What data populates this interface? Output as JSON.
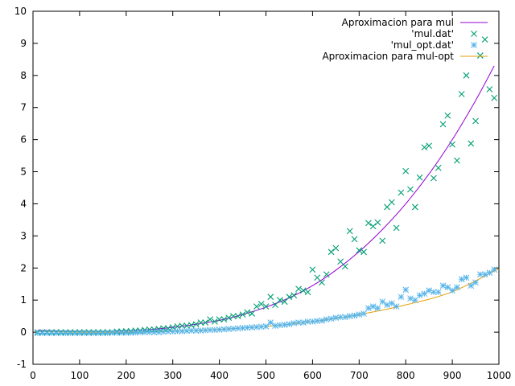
{
  "chart_data": {
    "type": "scatter",
    "title": "",
    "xlabel": "",
    "ylabel": "",
    "xlim": [
      0,
      1000
    ],
    "ylim": [
      -1,
      10
    ],
    "xticks": [
      0,
      100,
      200,
      300,
      400,
      500,
      600,
      700,
      800,
      900,
      1000
    ],
    "yticks": [
      -1,
      0,
      1,
      2,
      3,
      4,
      5,
      6,
      7,
      8,
      9,
      10
    ],
    "grid": false,
    "legend_position": "top-right",
    "legend": [
      {
        "label": "Aproximacion para mul",
        "kind": "line",
        "color": "#9400d3"
      },
      {
        "label": "'mul.dat'",
        "kind": "cross",
        "color": "#009e73"
      },
      {
        "label": "'mul_opt.dat'",
        "kind": "star",
        "color": "#56b4e9"
      },
      {
        "label": "Aproximacion para mul-opt",
        "kind": "line",
        "color": "#e69f00"
      }
    ],
    "lines": [
      {
        "name": "Aproximacion para mul",
        "color": "#9400d3",
        "x": [
          10,
          100,
          200,
          300,
          400,
          450,
          500,
          550,
          600,
          650,
          700,
          750,
          800,
          850,
          900,
          950,
          990
        ],
        "y": [
          0.06,
          0.03,
          0.04,
          0.15,
          0.37,
          0.55,
          0.78,
          1.07,
          1.45,
          1.93,
          2.51,
          3.2,
          4.0,
          4.93,
          6.0,
          7.22,
          8.3
        ]
      },
      {
        "name": "Aproximacion para mul-opt",
        "color": "#e69f00",
        "x": [
          10,
          100,
          200,
          300,
          400,
          500,
          600,
          700,
          800,
          900,
          1000
        ],
        "y": [
          0.02,
          0.0,
          0.0,
          0.03,
          0.09,
          0.18,
          0.33,
          0.55,
          0.85,
          1.26,
          1.98
        ]
      }
    ],
    "series": [
      {
        "name": "'mul.dat'",
        "marker": "cross",
        "color": "#009e73",
        "x": [
          10,
          20,
          30,
          40,
          50,
          60,
          70,
          80,
          90,
          100,
          110,
          120,
          130,
          140,
          150,
          160,
          170,
          180,
          190,
          200,
          210,
          220,
          230,
          240,
          250,
          260,
          270,
          280,
          290,
          300,
          310,
          320,
          330,
          340,
          350,
          360,
          370,
          380,
          390,
          400,
          410,
          420,
          430,
          440,
          450,
          460,
          470,
          480,
          490,
          500,
          510,
          520,
          530,
          540,
          550,
          560,
          570,
          580,
          590,
          600,
          610,
          620,
          630,
          640,
          650,
          660,
          670,
          680,
          690,
          700,
          710,
          720,
          730,
          740,
          750,
          760,
          770,
          780,
          790,
          800,
          810,
          820,
          830,
          840,
          850,
          860,
          870,
          880,
          890,
          900,
          910,
          920,
          930,
          940,
          950,
          960,
          970,
          980,
          990
        ],
        "y": [
          0.0,
          0.0,
          0.0,
          0.0,
          0.0,
          0.0,
          0.0,
          0.0,
          0.0,
          0.0,
          0.0,
          0.0,
          0.0,
          0.0,
          0.0,
          0.0,
          0.0,
          0.02,
          0.02,
          0.03,
          0.03,
          0.05,
          0.05,
          0.07,
          0.08,
          0.08,
          0.1,
          0.12,
          0.12,
          0.15,
          0.18,
          0.2,
          0.2,
          0.22,
          0.25,
          0.3,
          0.3,
          0.4,
          0.33,
          0.4,
          0.4,
          0.45,
          0.5,
          0.5,
          0.55,
          0.62,
          0.58,
          0.8,
          0.88,
          0.8,
          1.1,
          0.85,
          1.0,
          0.95,
          1.1,
          1.15,
          1.35,
          1.3,
          1.25,
          1.95,
          1.7,
          1.55,
          1.8,
          2.5,
          2.62,
          2.2,
          2.05,
          3.15,
          2.9,
          2.55,
          2.5,
          3.4,
          3.3,
          3.42,
          2.85,
          3.9,
          4.05,
          3.25,
          4.35,
          5.02,
          4.45,
          3.9,
          4.82,
          5.76,
          5.81,
          4.8,
          5.12,
          6.48,
          6.75,
          5.85,
          5.35,
          7.42,
          8.0,
          5.88,
          6.58,
          8.62,
          9.12,
          7.57,
          7.3
        ]
      },
      {
        "name": "'mul_opt.dat'",
        "marker": "star",
        "color": "#56b4e9",
        "x": [
          10,
          20,
          30,
          40,
          50,
          60,
          70,
          80,
          90,
          100,
          110,
          120,
          130,
          140,
          150,
          160,
          170,
          180,
          190,
          200,
          210,
          220,
          230,
          240,
          250,
          260,
          270,
          280,
          290,
          300,
          310,
          320,
          330,
          340,
          350,
          360,
          370,
          380,
          390,
          400,
          410,
          420,
          430,
          440,
          450,
          460,
          470,
          480,
          490,
          500,
          510,
          520,
          530,
          540,
          550,
          560,
          570,
          580,
          590,
          600,
          610,
          620,
          630,
          640,
          650,
          660,
          670,
          680,
          690,
          700,
          710,
          720,
          730,
          740,
          750,
          760,
          770,
          780,
          790,
          800,
          810,
          820,
          830,
          840,
          850,
          860,
          870,
          880,
          890,
          900,
          910,
          920,
          930,
          940,
          950,
          960,
          970,
          980,
          990
        ],
        "y": [
          -0.03,
          -0.03,
          -0.03,
          -0.03,
          -0.03,
          -0.03,
          -0.03,
          -0.03,
          -0.03,
          -0.03,
          -0.03,
          -0.03,
          -0.03,
          -0.03,
          -0.03,
          -0.03,
          -0.02,
          -0.02,
          -0.02,
          -0.02,
          -0.02,
          -0.01,
          0.0,
          0.0,
          0.0,
          0.0,
          0.0,
          0.01,
          0.02,
          0.02,
          0.03,
          0.03,
          0.04,
          0.05,
          0.05,
          0.05,
          0.06,
          0.07,
          0.07,
          0.08,
          0.09,
          0.1,
          0.11,
          0.12,
          0.13,
          0.14,
          0.15,
          0.16,
          0.17,
          0.18,
          0.3,
          0.2,
          0.22,
          0.23,
          0.25,
          0.28,
          0.3,
          0.3,
          0.33,
          0.33,
          0.35,
          0.36,
          0.4,
          0.42,
          0.45,
          0.47,
          0.47,
          0.5,
          0.52,
          0.55,
          0.58,
          0.75,
          0.8,
          0.75,
          0.95,
          0.85,
          0.9,
          0.8,
          1.1,
          1.32,
          1.05,
          1.0,
          1.15,
          1.2,
          1.3,
          1.25,
          1.25,
          1.45,
          1.4,
          1.3,
          1.4,
          1.65,
          1.7,
          1.45,
          1.55,
          1.8,
          1.8,
          1.85,
          1.95
        ]
      }
    ]
  }
}
